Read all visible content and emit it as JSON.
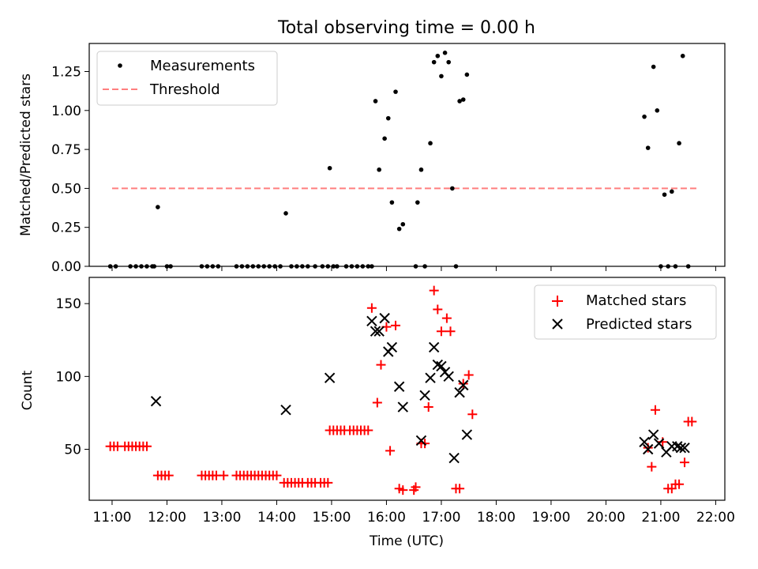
{
  "figure": {
    "title": "Total observing time = 0.00 h"
  },
  "chart_data": [
    {
      "type": "scatter",
      "ylabel": "Matched/Predicted stars",
      "xlabel": "",
      "xlim": [
        "10:35",
        "22:10"
      ],
      "ylim": [
        0,
        1.43
      ],
      "xticks": [
        "11:00",
        "12:00",
        "13:00",
        "14:00",
        "15:00",
        "16:00",
        "17:00",
        "18:00",
        "19:00",
        "20:00",
        "21:00",
        "22:00"
      ],
      "yticks": [
        "0.00",
        "0.25",
        "0.50",
        "0.75",
        "1.00",
        "1.25"
      ],
      "legend": {
        "position": "top-left",
        "entries": [
          "Measurements",
          "Threshold"
        ]
      },
      "colors": {
        "measurements": "#000000",
        "threshold": "#ff7f7f"
      },
      "threshold": {
        "name": "Threshold",
        "value": 0.5,
        "x": [
          "11:00",
          "21:40"
        ]
      },
      "series": [
        {
          "name": "Measurements",
          "points": [
            [
              "10:58",
              0
            ],
            [
              "11:04",
              0
            ],
            [
              "11:20",
              0
            ],
            [
              "11:26",
              0
            ],
            [
              "11:32",
              0
            ],
            [
              "11:38",
              0
            ],
            [
              "11:44",
              0
            ],
            [
              "11:46",
              0
            ],
            [
              "11:50",
              0.38
            ],
            [
              "12:00",
              0
            ],
            [
              "12:04",
              0
            ],
            [
              "12:38",
              0
            ],
            [
              "12:44",
              0
            ],
            [
              "12:50",
              0
            ],
            [
              "12:56",
              0
            ],
            [
              "13:16",
              0
            ],
            [
              "13:22",
              0
            ],
            [
              "13:28",
              0
            ],
            [
              "13:34",
              0
            ],
            [
              "13:40",
              0
            ],
            [
              "13:46",
              0
            ],
            [
              "13:52",
              0
            ],
            [
              "13:58",
              0
            ],
            [
              "14:04",
              0
            ],
            [
              "14:10",
              0.34
            ],
            [
              "14:16",
              0
            ],
            [
              "14:22",
              0
            ],
            [
              "14:28",
              0
            ],
            [
              "14:34",
              0
            ],
            [
              "14:42",
              0
            ],
            [
              "14:50",
              0
            ],
            [
              "14:56",
              0
            ],
            [
              "14:58",
              0.63
            ],
            [
              "15:02",
              0
            ],
            [
              "15:06",
              0
            ],
            [
              "15:16",
              0
            ],
            [
              "15:22",
              0
            ],
            [
              "15:28",
              0
            ],
            [
              "15:34",
              0
            ],
            [
              "15:40",
              0
            ],
            [
              "15:44",
              0
            ],
            [
              "15:48",
              1.06
            ],
            [
              "15:52",
              0.62
            ],
            [
              "15:58",
              0.82
            ],
            [
              "16:02",
              0.95
            ],
            [
              "16:06",
              0.41
            ],
            [
              "16:10",
              1.12
            ],
            [
              "16:14",
              0.24
            ],
            [
              "16:18",
              0.27
            ],
            [
              "16:32",
              0
            ],
            [
              "16:34",
              0.41
            ],
            [
              "16:38",
              0.62
            ],
            [
              "16:42",
              0
            ],
            [
              "16:48",
              0.79
            ],
            [
              "16:52",
              1.31
            ],
            [
              "16:56",
              1.35
            ],
            [
              "17:00",
              1.22
            ],
            [
              "17:04",
              1.37
            ],
            [
              "17:08",
              1.31
            ],
            [
              "17:12",
              0.5
            ],
            [
              "17:16",
              0
            ],
            [
              "17:20",
              1.06
            ],
            [
              "17:24",
              1.07
            ],
            [
              "17:28",
              1.23
            ],
            [
              "20:42",
              0.96
            ],
            [
              "20:46",
              0.76
            ],
            [
              "20:52",
              1.28
            ],
            [
              "20:56",
              1.0
            ],
            [
              "21:00",
              0
            ],
            [
              "21:04",
              0.46
            ],
            [
              "21:08",
              0
            ],
            [
              "21:12",
              0.48
            ],
            [
              "21:16",
              0
            ],
            [
              "21:20",
              0.79
            ],
            [
              "21:24",
              1.35
            ],
            [
              "21:30",
              0
            ]
          ]
        }
      ]
    },
    {
      "type": "scatter",
      "ylabel": "Count",
      "xlabel": "Time (UTC)",
      "xlim": [
        "10:35",
        "22:10"
      ],
      "ylim": [
        15,
        168
      ],
      "xticks": [
        "11:00",
        "12:00",
        "13:00",
        "14:00",
        "15:00",
        "16:00",
        "17:00",
        "18:00",
        "19:00",
        "20:00",
        "21:00",
        "22:00"
      ],
      "yticks": [
        "50",
        "100",
        "150"
      ],
      "legend": {
        "position": "top-right",
        "entries": [
          "Matched stars",
          "Predicted stars"
        ]
      },
      "colors": {
        "matched": "#ff0000",
        "predicted": "#000000"
      },
      "series": [
        {
          "name": "Matched stars",
          "marker": "+",
          "points": [
            [
              "10:58",
              52
            ],
            [
              "11:02",
              52
            ],
            [
              "11:06",
              52
            ],
            [
              "11:14",
              52
            ],
            [
              "11:18",
              52
            ],
            [
              "11:22",
              52
            ],
            [
              "11:26",
              52
            ],
            [
              "11:30",
              52
            ],
            [
              "11:34",
              52
            ],
            [
              "11:38",
              52
            ],
            [
              "11:50",
              32
            ],
            [
              "11:54",
              32
            ],
            [
              "11:58",
              32
            ],
            [
              "12:02",
              32
            ],
            [
              "12:38",
              32
            ],
            [
              "12:42",
              32
            ],
            [
              "12:46",
              32
            ],
            [
              "12:50",
              32
            ],
            [
              "12:54",
              32
            ],
            [
              "13:02",
              32
            ],
            [
              "13:16",
              32
            ],
            [
              "13:20",
              32
            ],
            [
              "13:24",
              32
            ],
            [
              "13:28",
              32
            ],
            [
              "13:32",
              32
            ],
            [
              "13:36",
              32
            ],
            [
              "13:40",
              32
            ],
            [
              "13:44",
              32
            ],
            [
              "13:48",
              32
            ],
            [
              "13:52",
              32
            ],
            [
              "13:56",
              32
            ],
            [
              "14:00",
              32
            ],
            [
              "14:08",
              27
            ],
            [
              "14:12",
              27
            ],
            [
              "14:16",
              27
            ],
            [
              "14:20",
              27
            ],
            [
              "14:24",
              27
            ],
            [
              "14:28",
              27
            ],
            [
              "14:34",
              27
            ],
            [
              "14:38",
              27
            ],
            [
              "14:42",
              27
            ],
            [
              "14:48",
              27
            ],
            [
              "14:52",
              27
            ],
            [
              "14:56",
              27
            ],
            [
              "14:58",
              63
            ],
            [
              "15:02",
              63
            ],
            [
              "15:06",
              63
            ],
            [
              "15:10",
              63
            ],
            [
              "15:14",
              63
            ],
            [
              "15:20",
              63
            ],
            [
              "15:24",
              63
            ],
            [
              "15:28",
              63
            ],
            [
              "15:32",
              63
            ],
            [
              "15:36",
              63
            ],
            [
              "15:40",
              63
            ],
            [
              "15:44",
              147
            ],
            [
              "15:50",
              82
            ],
            [
              "15:54",
              108
            ],
            [
              "16:00",
              134
            ],
            [
              "16:04",
              49
            ],
            [
              "16:10",
              135
            ],
            [
              "16:14",
              23
            ],
            [
              "16:18",
              22
            ],
            [
              "16:30",
              22
            ],
            [
              "16:32",
              24
            ],
            [
              "16:38",
              54
            ],
            [
              "16:42",
              54
            ],
            [
              "16:46",
              79
            ],
            [
              "16:52",
              159
            ],
            [
              "16:56",
              146
            ],
            [
              "17:00",
              131
            ],
            [
              "17:06",
              140
            ],
            [
              "17:10",
              131
            ],
            [
              "17:16",
              23
            ],
            [
              "17:20",
              23
            ],
            [
              "17:24",
              95
            ],
            [
              "17:30",
              101
            ],
            [
              "17:34",
              74
            ],
            [
              "20:46",
              51
            ],
            [
              "20:50",
              38
            ],
            [
              "20:54",
              77
            ],
            [
              "21:02",
              55
            ],
            [
              "21:08",
              23
            ],
            [
              "21:12",
              23
            ],
            [
              "21:16",
              26
            ],
            [
              "21:20",
              26
            ],
            [
              "21:26",
              41
            ],
            [
              "21:30",
              69
            ],
            [
              "21:34",
              69
            ]
          ]
        },
        {
          "name": "Predicted stars",
          "marker": "x",
          "points": [
            [
              "11:48",
              83
            ],
            [
              "14:10",
              77
            ],
            [
              "14:58",
              99
            ],
            [
              "15:44",
              138
            ],
            [
              "15:48",
              131
            ],
            [
              "15:52",
              131
            ],
            [
              "15:58",
              140
            ],
            [
              "16:02",
              117
            ],
            [
              "16:06",
              120
            ],
            [
              "16:14",
              93
            ],
            [
              "16:18",
              79
            ],
            [
              "16:38",
              56
            ],
            [
              "16:42",
              87
            ],
            [
              "16:48",
              99
            ],
            [
              "16:52",
              120
            ],
            [
              "16:56",
              108
            ],
            [
              "17:00",
              107
            ],
            [
              "17:04",
              103
            ],
            [
              "17:08",
              100
            ],
            [
              "17:14",
              44
            ],
            [
              "17:20",
              89
            ],
            [
              "17:24",
              94
            ],
            [
              "17:28",
              60
            ],
            [
              "20:42",
              55
            ],
            [
              "20:46",
              50
            ],
            [
              "20:52",
              60
            ],
            [
              "20:58",
              54
            ],
            [
              "21:06",
              48
            ],
            [
              "21:12",
              52
            ],
            [
              "21:18",
              52
            ],
            [
              "21:22",
              51
            ],
            [
              "21:26",
              51
            ]
          ]
        }
      ]
    }
  ]
}
